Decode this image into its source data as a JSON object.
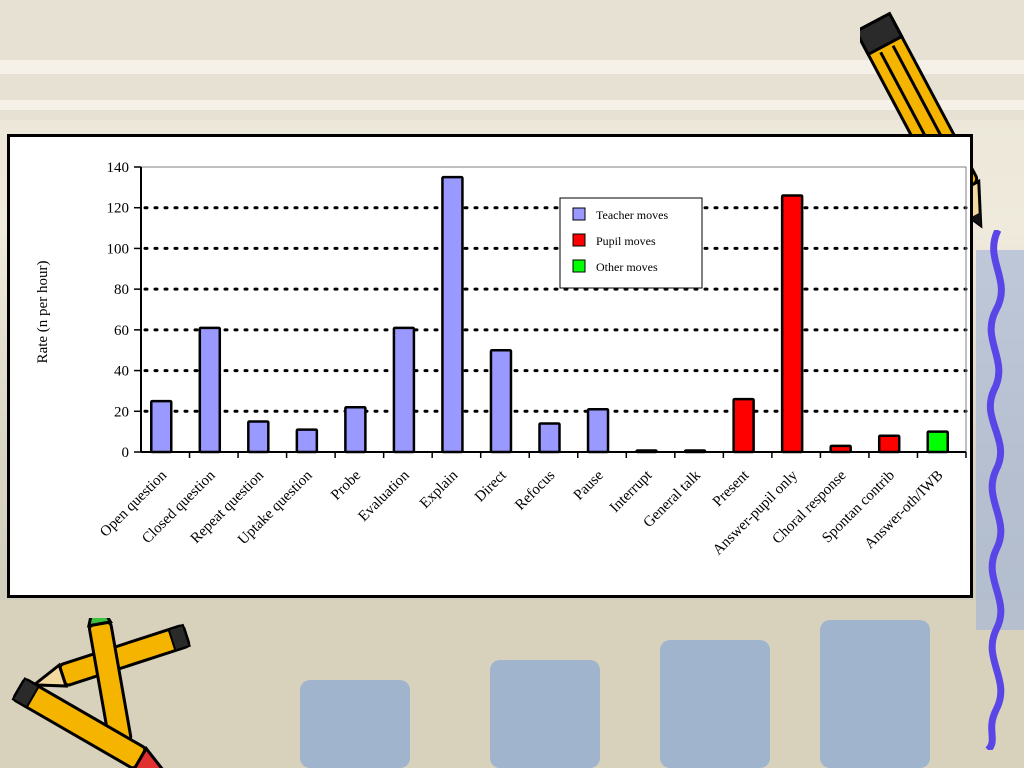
{
  "slide": {
    "background": "classroom photo, washed out"
  },
  "icons": {
    "top_right_decoration": "pencil-icon",
    "bottom_left_decoration": "crossed-pencils-icon",
    "right_border_decoration": "wavy-line-icon"
  },
  "colors": {
    "teacher": "#9999ff",
    "pupil": "#ff0000",
    "other": "#00ff00",
    "gridline": "#000000",
    "plot_border": "#808080"
  },
  "chart_data": {
    "type": "bar",
    "title": "",
    "xlabel": "",
    "ylabel": "Rate (n per hour)",
    "ylim": [
      0,
      140
    ],
    "yticks": [
      0,
      20,
      40,
      60,
      80,
      100,
      120,
      140
    ],
    "grid": "horizontal dotted",
    "legend_position": "top-center-right",
    "categories": [
      "Open question",
      "Closed question",
      "Repeat question",
      "Uptake question",
      "Probe",
      "Evaluation",
      "Explain",
      "Direct",
      "Refocus",
      "Pause",
      "Interrupt",
      "General talk",
      "Present",
      "Answer-pupil only",
      "Choral response",
      "Spontan contrib",
      "Answer-oth/IWB"
    ],
    "values": [
      25,
      61,
      15,
      11,
      22,
      61,
      135,
      50,
      14,
      21,
      0,
      0,
      26,
      126,
      3,
      8,
      10
    ],
    "groups": [
      "teacher",
      "teacher",
      "teacher",
      "teacher",
      "teacher",
      "teacher",
      "teacher",
      "teacher",
      "teacher",
      "teacher",
      "teacher",
      "teacher",
      "pupil",
      "pupil",
      "pupil",
      "pupil",
      "other"
    ],
    "legend": [
      {
        "key": "teacher",
        "label": "Teacher moves"
      },
      {
        "key": "pupil",
        "label": "Pupil moves"
      },
      {
        "key": "other",
        "label": "Other moves"
      }
    ]
  }
}
